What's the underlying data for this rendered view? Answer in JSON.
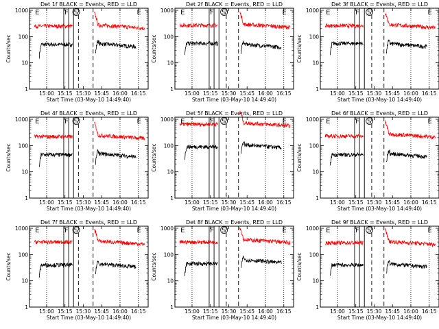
{
  "figure": {
    "layout": "3x3 grid",
    "colors": {
      "events": "#000000",
      "lld": "#ff0000",
      "axes": "#000000",
      "background": "#ffffff"
    }
  },
  "chart_data": [
    {
      "type": "line",
      "title": "Det 1f BLACK = Events, RED = LLD",
      "xlabel": "Start Time (03-May-10 14:49:40)",
      "ylabel": "Counts/sec",
      "x_ticks": [
        "15:00",
        "15:15",
        "15:30",
        "15:45",
        "16:00",
        "16:15"
      ],
      "y_ticks": [
        "1",
        "10",
        "100",
        "1000"
      ],
      "yscale": "log",
      "ylim": [
        1,
        1200
      ],
      "markers": {
        "E_left": "14:50",
        "F": "15:18",
        "S": "15:25",
        "E_right": "16:16"
      },
      "series": [
        {
          "name": "BLACK = Events",
          "segments": [
            {
              "start": "14:54",
              "end": "15:21",
              "level": 50
            },
            {
              "start": "15:40",
              "end": "16:13",
              "level": 55
            }
          ]
        },
        {
          "name": "RED = LLD",
          "segments": [
            {
              "start": "14:50",
              "end": "15:21",
              "level": 250
            },
            {
              "start": "15:39",
              "end": "16:20",
              "level": 280
            }
          ]
        }
      ]
    },
    {
      "type": "line",
      "title": "Det 2f BLACK = Events, RED = LLD",
      "xlabel": "Start Time (03-May-10 14:49:40)",
      "ylabel": "Counts/sec",
      "x_ticks": [
        "15:00",
        "15:15",
        "15:30",
        "15:45",
        "16:00",
        "16:15"
      ],
      "y_ticks": [
        "1",
        "10",
        "100",
        "1000"
      ],
      "yscale": "log",
      "ylim": [
        1,
        1200
      ],
      "markers": {
        "E_left": "14:50",
        "F": "15:18",
        "S": "15:27",
        "E_right": "16:16"
      },
      "series": [
        {
          "name": "BLACK = Events",
          "segments": [
            {
              "start": "14:54",
              "end": "15:21",
              "level": 55
            },
            {
              "start": "15:40",
              "end": "16:13",
              "level": 52
            }
          ]
        },
        {
          "name": "RED = LLD",
          "segments": [
            {
              "start": "14:50",
              "end": "15:21",
              "level": 270
            },
            {
              "start": "15:39",
              "end": "16:20",
              "level": 300
            }
          ]
        }
      ]
    },
    {
      "type": "line",
      "title": "Det 3f BLACK = Events, RED = LLD",
      "xlabel": "Start Time (03-May-10 14:49:40)",
      "ylabel": "Counts/sec",
      "x_ticks": [
        "15:00",
        "15:15",
        "15:30",
        "15:45",
        "16:00",
        "16:15"
      ],
      "y_ticks": [
        "1",
        "10",
        "100",
        "1000"
      ],
      "yscale": "log",
      "ylim": [
        1,
        1200
      ],
      "markers": {
        "E_left": "14:50",
        "F": "15:18",
        "S": "15:27",
        "E_right": "16:16"
      },
      "series": [
        {
          "name": "BLACK = Events",
          "segments": [
            {
              "start": "14:54",
              "end": "15:21",
              "level": 55
            },
            {
              "start": "15:40",
              "end": "16:13",
              "level": 55
            }
          ]
        },
        {
          "name": "RED = LLD",
          "segments": [
            {
              "start": "14:50",
              "end": "15:21",
              "level": 260
            },
            {
              "start": "15:39",
              "end": "16:20",
              "level": 290
            }
          ]
        }
      ]
    },
    {
      "type": "line",
      "title": "Det 4f BLACK = Events, RED = LLD",
      "xlabel": "Start Time (03-May-10 14:49:40)",
      "ylabel": "Counts/sec",
      "x_ticks": [
        "15:00",
        "15:15",
        "15:30",
        "15:45",
        "16:00",
        "16:15"
      ],
      "y_ticks": [
        "1",
        "10",
        "100",
        "1000"
      ],
      "yscale": "log",
      "ylim": [
        1,
        1200
      ],
      "markers": {
        "E_left": "14:50",
        "F": "15:18",
        "S": "15:25",
        "E_right": "16:16"
      },
      "series": [
        {
          "name": "BLACK = Events",
          "segments": [
            {
              "start": "14:54",
              "end": "15:21",
              "level": 45
            },
            {
              "start": "15:40",
              "end": "16:13",
              "level": 50
            }
          ]
        },
        {
          "name": "RED = LLD",
          "segments": [
            {
              "start": "14:50",
              "end": "15:21",
              "level": 220
            },
            {
              "start": "15:39",
              "end": "16:20",
              "level": 250
            }
          ]
        }
      ]
    },
    {
      "type": "line",
      "title": "Det 5f BLACK = Events, RED = LLD",
      "xlabel": "Start Time (03-May-10 14:49:40)",
      "ylabel": "Counts/sec",
      "x_ticks": [
        "15:00",
        "15:15",
        "15:30",
        "15:45",
        "16:00",
        "16:15"
      ],
      "y_ticks": [
        "1",
        "10",
        "100",
        "1000"
      ],
      "yscale": "log",
      "ylim": [
        1,
        1200
      ],
      "markers": {
        "E_left": "14:50",
        "F": "15:18",
        "S": "15:27",
        "E_right": "16:16"
      },
      "series": [
        {
          "name": "BLACK = Events",
          "segments": [
            {
              "start": "14:54",
              "end": "15:21",
              "level": 90
            },
            {
              "start": "15:40",
              "end": "16:13",
              "level": 110
            }
          ]
        },
        {
          "name": "RED = LLD",
          "segments": [
            {
              "start": "14:50",
              "end": "15:21",
              "level": 650
            },
            {
              "start": "15:39",
              "end": "16:20",
              "level": 750
            }
          ]
        }
      ]
    },
    {
      "type": "line",
      "title": "Det 6f BLACK = Events, RED = LLD",
      "xlabel": "Start Time (03-May-10 14:49:40)",
      "ylabel": "Counts/sec",
      "x_ticks": [
        "15:00",
        "15:15",
        "15:30",
        "15:45",
        "16:00",
        "16:15"
      ],
      "y_ticks": [
        "1",
        "10",
        "100",
        "1000"
      ],
      "yscale": "log",
      "ylim": [
        1,
        1200
      ],
      "markers": {
        "E_left": "14:50",
        "F": "15:18",
        "S": "15:27",
        "E_right": "16:16"
      },
      "series": [
        {
          "name": "BLACK = Events",
          "segments": [
            {
              "start": "14:54",
              "end": "15:21",
              "level": 45
            },
            {
              "start": "15:40",
              "end": "16:13",
              "level": 50
            }
          ]
        },
        {
          "name": "RED = LLD",
          "segments": [
            {
              "start": "14:50",
              "end": "15:21",
              "level": 230
            },
            {
              "start": "15:39",
              "end": "16:20",
              "level": 280
            }
          ]
        }
      ]
    },
    {
      "type": "line",
      "title": "Det 7f BLACK = Events, RED = LLD",
      "xlabel": "Start Time (03-May-10 14:49:40)",
      "ylabel": "Counts/sec",
      "x_ticks": [
        "15:00",
        "15:15",
        "15:30",
        "15:45",
        "16:00",
        "16:15"
      ],
      "y_ticks": [
        "1",
        "10",
        "100",
        "1000"
      ],
      "yscale": "log",
      "ylim": [
        1,
        1200
      ],
      "markers": {
        "E_left": "14:50",
        "F": "15:18",
        "S": "15:25",
        "E_right": "16:16"
      },
      "series": [
        {
          "name": "BLACK = Events",
          "segments": [
            {
              "start": "14:54",
              "end": "15:21",
              "level": 40
            },
            {
              "start": "15:40",
              "end": "16:13",
              "level": 45
            }
          ]
        },
        {
          "name": "RED = LLD",
          "segments": [
            {
              "start": "14:50",
              "end": "15:21",
              "level": 300
            },
            {
              "start": "15:39",
              "end": "16:20",
              "level": 330
            }
          ]
        }
      ]
    },
    {
      "type": "line",
      "title": "Det 8f BLACK = Events, RED = LLD",
      "xlabel": "Start Time (03-May-10 14:49:40)",
      "ylabel": "Counts/sec",
      "x_ticks": [
        "15:00",
        "15:15",
        "15:30",
        "15:45",
        "16:00",
        "16:15"
      ],
      "y_ticks": [
        "1",
        "10",
        "100",
        "1000"
      ],
      "yscale": "log",
      "ylim": [
        1,
        1200
      ],
      "markers": {
        "E_left": "14:50",
        "F": "15:18",
        "S": "15:27",
        "E_right": "16:16"
      },
      "series": [
        {
          "name": "BLACK = Events",
          "segments": [
            {
              "start": "14:54",
              "end": "15:21",
              "level": 45
            },
            {
              "start": "15:40",
              "end": "16:13",
              "level": 65
            }
          ]
        },
        {
          "name": "RED = LLD",
          "segments": [
            {
              "start": "14:50",
              "end": "15:21",
              "level": 300
            },
            {
              "start": "15:39",
              "end": "16:20",
              "level": 380
            }
          ]
        }
      ]
    },
    {
      "type": "line",
      "title": "Det 9f BLACK = Events, RED = LLD",
      "xlabel": "Start Time (03-May-10 14:49:40)",
      "ylabel": "Counts/sec",
      "x_ticks": [
        "15:00",
        "15:15",
        "15:30",
        "15:45",
        "16:00",
        "16:15"
      ],
      "y_ticks": [
        "1",
        "10",
        "100",
        "1000"
      ],
      "yscale": "log",
      "ylim": [
        1,
        1200
      ],
      "markers": {
        "E_left": "14:50",
        "F": "15:18",
        "S": "15:27",
        "E_right": "16:16"
      },
      "series": [
        {
          "name": "BLACK = Events",
          "segments": [
            {
              "start": "14:54",
              "end": "15:21",
              "level": 40
            },
            {
              "start": "15:40",
              "end": "16:13",
              "level": 45
            }
          ]
        },
        {
          "name": "RED = LLD",
          "segments": [
            {
              "start": "14:50",
              "end": "15:21",
              "level": 280
            },
            {
              "start": "15:39",
              "end": "16:20",
              "level": 320
            }
          ]
        }
      ]
    }
  ]
}
